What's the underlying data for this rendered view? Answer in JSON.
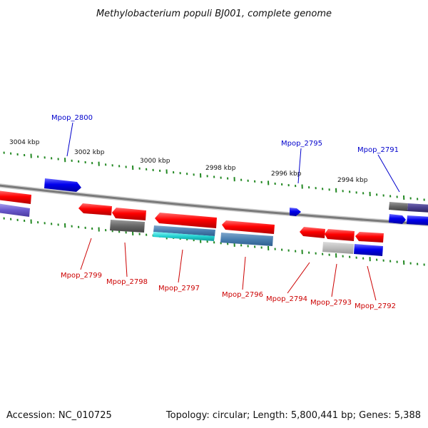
{
  "title": "Methylobacterium populi BJ001, complete genome",
  "footer": {
    "accession": "Accession: NC_010725",
    "summary": "Topology: circular; Length: 5,800,441 bp; Genes: 5,388"
  },
  "scale_labels": [
    "3004 kbp",
    "3002 kbp",
    "3000 kbp",
    "2998 kbp",
    "2996 kbp",
    "2994 kbp"
  ],
  "colors": {
    "forward_label": "#0000cc",
    "reverse_label": "#cc0000",
    "tick": "#228822",
    "backbone": "#888888"
  },
  "forward_genes": [
    {
      "name": "Mpop_2800"
    },
    {
      "name": "Mpop_2795"
    },
    {
      "name": "Mpop_2791"
    }
  ],
  "reverse_genes": [
    {
      "name": "Mpop_2799"
    },
    {
      "name": "Mpop_2798"
    },
    {
      "name": "Mpop_2797"
    },
    {
      "name": "Mpop_2796"
    },
    {
      "name": "Mpop_2794"
    },
    {
      "name": "Mpop_2793"
    },
    {
      "name": "Mpop_2792"
    }
  ]
}
